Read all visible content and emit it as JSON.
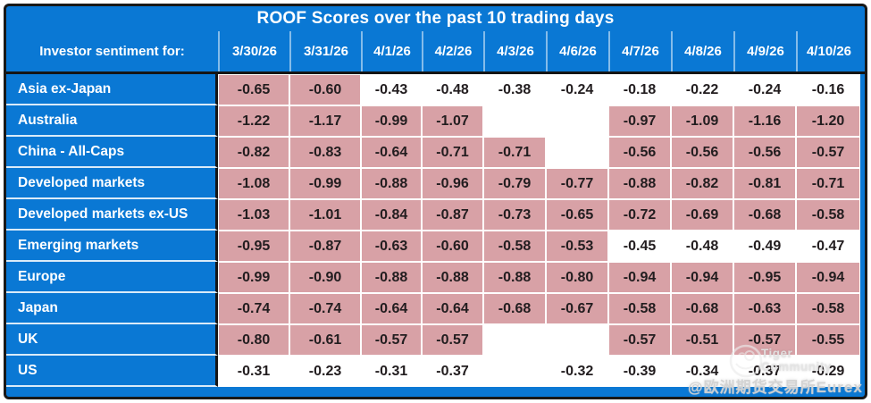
{
  "chart_data": {
    "type": "table",
    "title": "ROOF Scores over the past 10 trading days",
    "row_header": "Investor sentiment for:",
    "columns": [
      "3/30/26",
      "3/31/26",
      "4/1/26",
      "4/2/26",
      "4/3/26",
      "4/6/26",
      "4/7/26",
      "4/8/26",
      "4/9/26",
      "4/10/26"
    ],
    "rows": [
      {
        "label": "Asia ex-Japan",
        "values": [
          -0.65,
          -0.6,
          -0.43,
          -0.48,
          -0.38,
          -0.24,
          -0.18,
          -0.22,
          -0.24,
          -0.16
        ]
      },
      {
        "label": "Australia",
        "values": [
          -1.22,
          -1.17,
          -0.99,
          -1.07,
          null,
          null,
          -0.97,
          -1.09,
          -1.16,
          -1.2
        ]
      },
      {
        "label": "China - All-Caps",
        "values": [
          -0.82,
          -0.83,
          -0.64,
          -0.71,
          -0.71,
          null,
          -0.56,
          -0.56,
          -0.56,
          -0.57
        ]
      },
      {
        "label": "Developed markets",
        "values": [
          -1.08,
          -0.99,
          -0.88,
          -0.96,
          -0.79,
          -0.77,
          -0.88,
          -0.82,
          -0.81,
          -0.71
        ]
      },
      {
        "label": "Developed markets ex-US",
        "values": [
          -1.03,
          -1.01,
          -0.84,
          -0.87,
          -0.73,
          -0.65,
          -0.72,
          -0.69,
          -0.68,
          -0.58
        ]
      },
      {
        "label": "Emerging markets",
        "values": [
          -0.95,
          -0.87,
          -0.63,
          -0.6,
          -0.58,
          -0.53,
          -0.45,
          -0.48,
          -0.49,
          -0.47
        ]
      },
      {
        "label": "Europe",
        "values": [
          -0.99,
          -0.9,
          -0.88,
          -0.88,
          -0.88,
          -0.8,
          -0.94,
          -0.94,
          -0.95,
          -0.94
        ]
      },
      {
        "label": "Japan",
        "values": [
          -0.74,
          -0.74,
          -0.64,
          -0.64,
          -0.68,
          -0.67,
          -0.58,
          -0.68,
          -0.63,
          -0.58
        ]
      },
      {
        "label": "UK",
        "values": [
          -0.8,
          -0.61,
          -0.57,
          -0.57,
          null,
          null,
          -0.57,
          -0.51,
          -0.57,
          -0.55
        ]
      },
      {
        "label": "US",
        "values": [
          -0.31,
          -0.23,
          -0.31,
          -0.37,
          null,
          -0.32,
          -0.39,
          -0.34,
          -0.37,
          -0.29
        ]
      }
    ],
    "value_format": "2 decimal places, negative",
    "shading": {
      "pink_when": "value < -0.5",
      "pink_hex": "#d8a1a6",
      "white_when": "value >= -0.5 or blank"
    },
    "layout": {
      "grid": "white gridlines between cells",
      "header_style": "blue band, white bold text"
    }
  },
  "watermark": {
    "community_label": "Tiger Community",
    "handle": "@欧洲期货交易所Eurex",
    "logo": "tiger-circle-doodle"
  },
  "colors": {
    "blue": "#0a78d4",
    "pink": "#d8a1a6",
    "ink": "#221d1f",
    "frame_border": "#181818",
    "divider": "#151515"
  }
}
